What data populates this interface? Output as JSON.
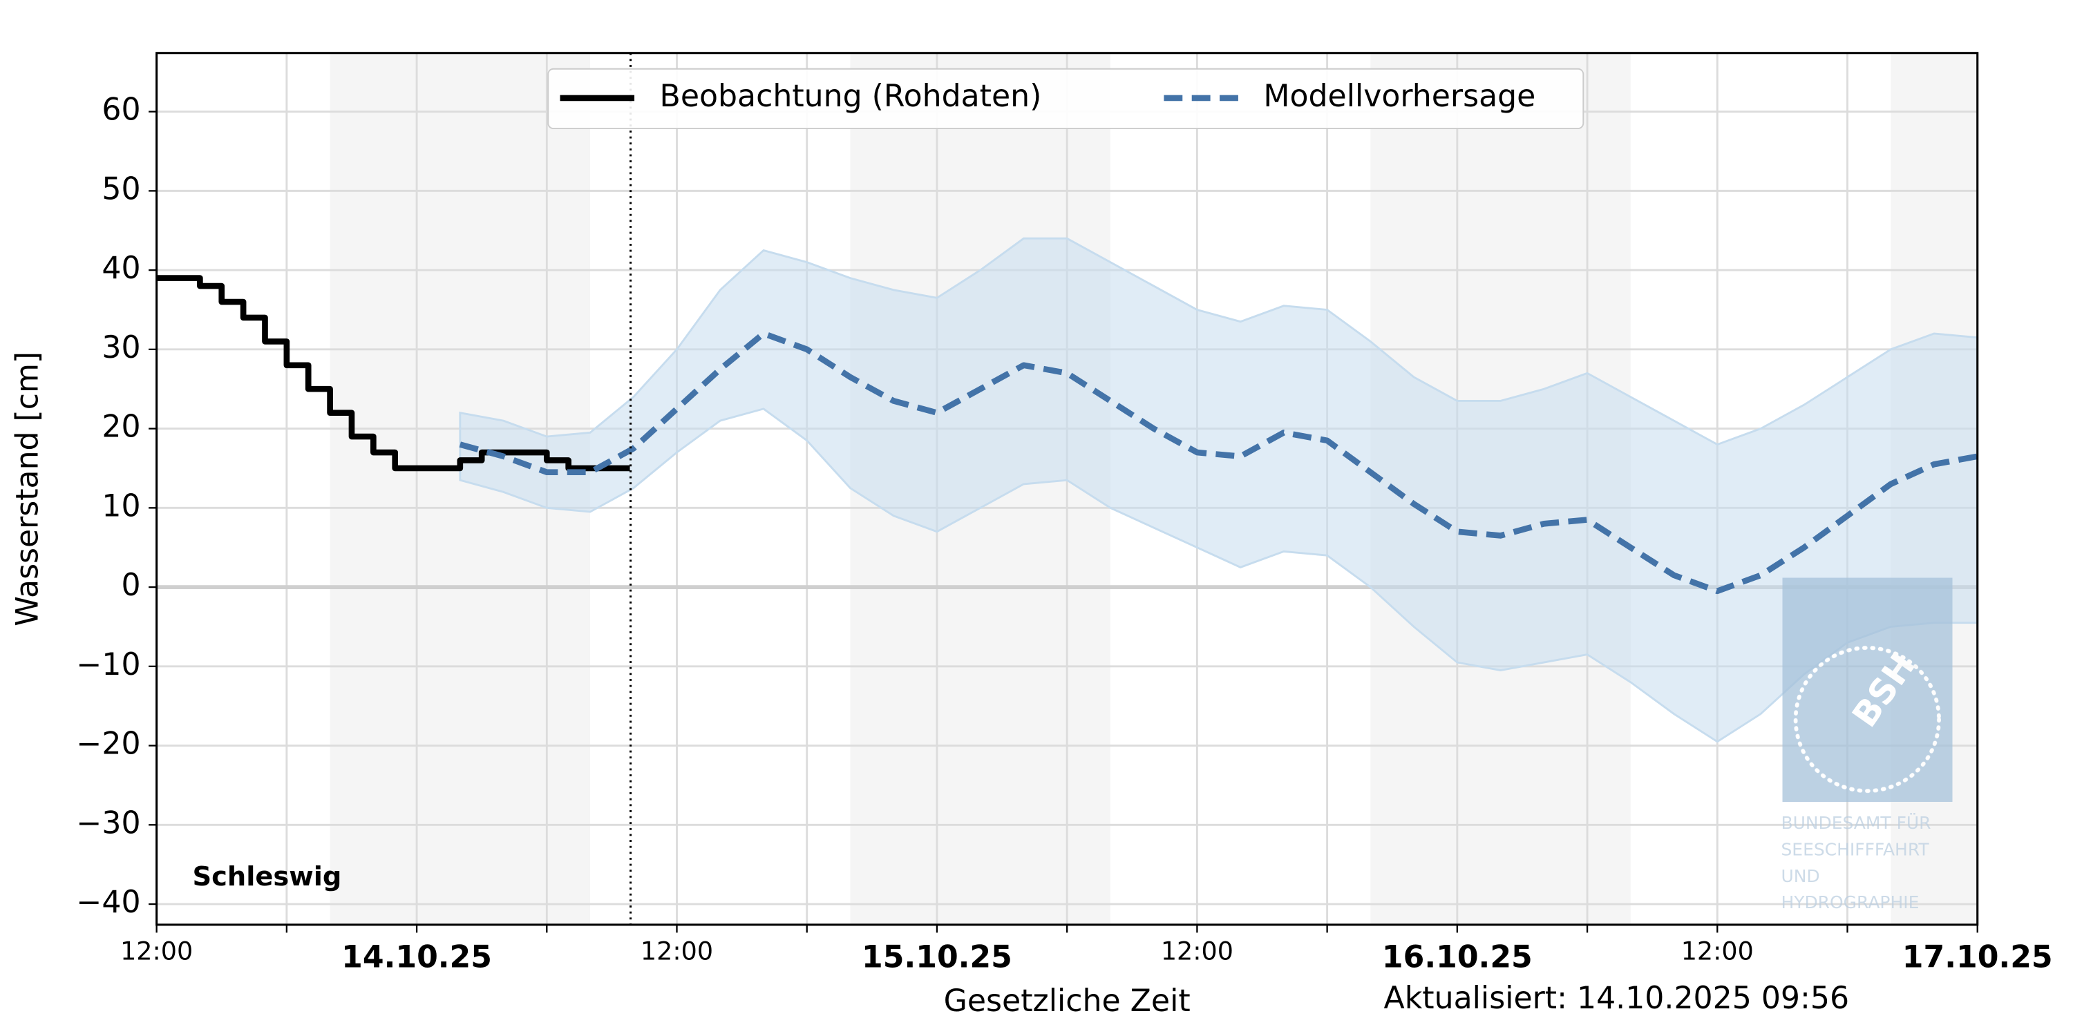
{
  "chart_data": {
    "type": "line",
    "station": "Schleswig",
    "xlabel": "Gesetzliche Zeit",
    "ylabel": "Wasserstand [cm]",
    "updated": "Aktualisiert: 14.10.2025 09:56",
    "xlim": [
      "13.10.25 12:00",
      "17.10.25 00:00"
    ],
    "ylim": [
      -42.6,
      67.4
    ],
    "yticks": [
      {
        "value": -40,
        "label": "−40"
      },
      {
        "value": -30,
        "label": "−30"
      },
      {
        "value": -20,
        "label": "−20"
      },
      {
        "value": -10,
        "label": "−10"
      },
      0,
      10,
      20,
      30,
      40,
      50,
      60
    ],
    "xticks": [
      {
        "value": "13.10.25 12:00",
        "label": "12:00"
      },
      {
        "value": "13.10.25 18:00",
        "label": null
      },
      {
        "value": "14.10.25 00:00",
        "label": "14.10.25"
      },
      {
        "value": "14.10.25 06:00",
        "label": null
      },
      {
        "value": "14.10.25 12:00",
        "label": "12:00"
      },
      {
        "value": "14.10.25 18:00",
        "label": null
      },
      {
        "value": "15.10.25 00:00",
        "label": "15.10.25"
      },
      {
        "value": "15.10.25 06:00",
        "label": null
      },
      {
        "value": "15.10.25 12:00",
        "label": "12:00"
      },
      {
        "value": "15.10.25 18:00",
        "label": null
      },
      {
        "value": "16.10.25 00:00",
        "label": "16.10.25"
      },
      {
        "value": "16.10.25 06:00",
        "label": null
      },
      {
        "value": "16.10.25 12:00",
        "label": "12:00"
      },
      {
        "value": "16.10.25 18:00",
        "label": null
      },
      {
        "value": "17.10.25 00:00",
        "label": "17.10.25"
      }
    ],
    "grid": true,
    "hline": 0,
    "now": "14.10.25 09:52",
    "shaded_spans": [
      [
        "13.10.25 20:00",
        "14.10.25 08:00"
      ],
      [
        "14.10.25 20:00",
        "15.10.25 08:00"
      ],
      [
        "15.10.25 20:00",
        "16.10.25 08:00"
      ],
      [
        "16.10.25 20:00",
        "17.10.25 00:00"
      ]
    ],
    "legend": "upper center",
    "series": [
      {
        "name": "Beobachtung (Rohdaten)",
        "color": "#000000",
        "style": "step",
        "x": [
          "13.10.25 12:00",
          "13.10.25 13:00",
          "13.10.25 14:00",
          "13.10.25 15:00",
          "13.10.25 16:00",
          "13.10.25 17:00",
          "13.10.25 18:00",
          "13.10.25 19:00",
          "13.10.25 20:00",
          "13.10.25 21:00",
          "13.10.25 22:00",
          "13.10.25 23:00",
          "14.10.25 00:00",
          "14.10.25 01:00",
          "14.10.25 02:00",
          "14.10.25 03:00",
          "14.10.25 04:00",
          "14.10.25 05:00",
          "14.10.25 06:00",
          "14.10.25 07:00",
          "14.10.25 08:00",
          "14.10.25 09:00",
          "14.10.25 09:50"
        ],
        "values": [
          39,
          39,
          38,
          36,
          34,
          31,
          28,
          25,
          22,
          19,
          17,
          15,
          15,
          15,
          16,
          17,
          17,
          17,
          16,
          15,
          15,
          15,
          15
        ]
      },
      {
        "name": "Modellvorhersage",
        "color": "#4373a8",
        "style": "dashed",
        "band_color": "#c6dcee",
        "x": [
          "14.10.25 02:00",
          "14.10.25 04:00",
          "14.10.25 06:00",
          "14.10.25 08:00",
          "14.10.25 10:00",
          "14.10.25 12:00",
          "14.10.25 14:00",
          "14.10.25 16:00",
          "14.10.25 18:00",
          "14.10.25 20:00",
          "14.10.25 22:00",
          "15.10.25 00:00",
          "15.10.25 02:00",
          "15.10.25 04:00",
          "15.10.25 06:00",
          "15.10.25 08:00",
          "15.10.25 10:00",
          "15.10.25 12:00",
          "15.10.25 14:00",
          "15.10.25 16:00",
          "15.10.25 18:00",
          "15.10.25 20:00",
          "15.10.25 22:00",
          "16.10.25 00:00",
          "16.10.25 02:00",
          "16.10.25 04:00",
          "16.10.25 06:00",
          "16.10.25 08:00",
          "16.10.25 10:00",
          "16.10.25 12:00",
          "16.10.25 14:00",
          "16.10.25 16:00",
          "16.10.25 18:00",
          "16.10.25 20:00",
          "16.10.25 22:00",
          "17.10.25 00:00"
        ],
        "values": [
          18,
          16.5,
          14.5,
          14.5,
          17.5,
          22.5,
          27.5,
          32,
          30,
          26.5,
          23.5,
          22,
          25,
          28,
          27,
          23.5,
          20,
          17,
          16.5,
          19.5,
          18.5,
          14.5,
          10.5,
          7,
          6.5,
          8,
          8.5,
          5,
          1.5,
          -0.5,
          1.5,
          5,
          9,
          13,
          15.5,
          16.5
        ],
        "upper": [
          22,
          21,
          19,
          19.5,
          24,
          30,
          37.5,
          42.5,
          41,
          39,
          37.5,
          36.5,
          40,
          44,
          44,
          41,
          38,
          35,
          33.5,
          35.5,
          35,
          31,
          26.5,
          23.5,
          23.5,
          25,
          27,
          24,
          21,
          18,
          20,
          23,
          26.5,
          30,
          32,
          31.5
        ],
        "lower": [
          13.5,
          12,
          10,
          9.5,
          12.5,
          17,
          21,
          22.5,
          18.5,
          12.5,
          9,
          7,
          10,
          13,
          13.5,
          10,
          7.5,
          5,
          2.5,
          4.5,
          4,
          0,
          -5,
          -9.5,
          -10.5,
          -9.5,
          -8.5,
          -12,
          -16,
          -19.5,
          -16,
          -11,
          -7,
          -5,
          -4.5,
          -4.5
        ]
      }
    ],
    "watermark": {
      "logo": "BSH",
      "lines": [
        "BUNDESAMT FÜR",
        "SEESCHIFFFAHRT",
        "UND",
        "HYDROGRAPHIE"
      ]
    }
  }
}
